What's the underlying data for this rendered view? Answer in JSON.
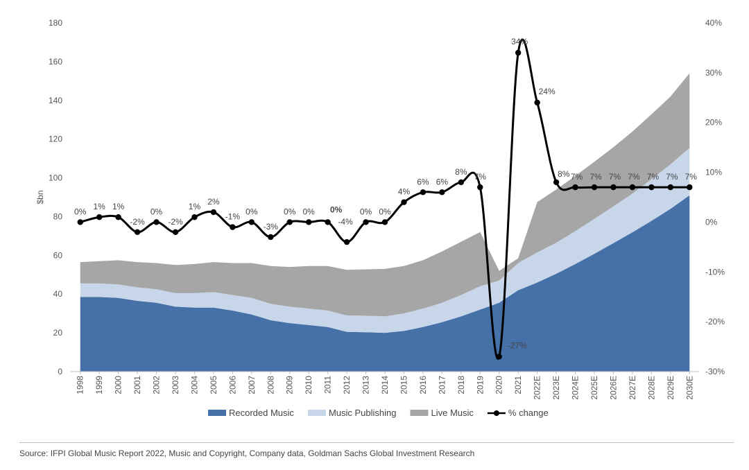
{
  "chart_data": {
    "type": "area",
    "stacked": true,
    "categories": [
      "1998",
      "1999",
      "2000",
      "2001",
      "2002",
      "2003",
      "2004",
      "2005",
      "2006",
      "2007",
      "2008",
      "2009",
      "2010",
      "2011",
      "2012",
      "2013",
      "2014",
      "2015",
      "2016",
      "2017",
      "2018",
      "2019",
      "2020",
      "2021",
      "2022E",
      "2023E",
      "2024E",
      "2025E",
      "2026E",
      "2027E",
      "2028E",
      "2029E",
      "2030E"
    ],
    "ylabel": "$bn",
    "ylim": [
      0,
      180
    ],
    "yticks": [
      0,
      20,
      40,
      60,
      80,
      100,
      120,
      140,
      160,
      180
    ],
    "y2lim": [
      -30,
      40
    ],
    "y2ticks": [
      "-30%",
      "-20%",
      "-10%",
      "0%",
      "10%",
      "20%",
      "30%",
      "40%"
    ],
    "y2tick_values": [
      -30,
      -20,
      -10,
      0,
      10,
      20,
      30,
      40
    ],
    "series": [
      {
        "name": "Recorded Music",
        "color": "#4571a8",
        "values": [
          38.5,
          38.5,
          38,
          36.5,
          35.5,
          33.5,
          33,
          33,
          31.5,
          29.5,
          26.5,
          25,
          24,
          23,
          20.5,
          20.3,
          20,
          21,
          23,
          25.5,
          28.5,
          32,
          35.5,
          42,
          46,
          50.5,
          55.5,
          60.8,
          66.3,
          71.9,
          77.8,
          84,
          91
        ]
      },
      {
        "name": "Music  Publishing",
        "color": "#c8d6e9",
        "values": [
          7,
          7,
          7,
          7,
          7,
          7,
          7.5,
          8,
          8,
          8.5,
          8.5,
          8.5,
          8.5,
          8.5,
          8.5,
          8.5,
          8.5,
          9,
          9.5,
          10,
          11,
          12,
          11.5,
          14,
          15.5,
          16,
          17,
          18,
          19,
          20,
          21.5,
          23,
          24.5
        ]
      },
      {
        "name": "Live Music",
        "color": "#a6a6a6",
        "values": [
          11,
          11.5,
          12.5,
          13,
          13.5,
          14.5,
          15,
          15.5,
          16.5,
          18,
          19.5,
          20.5,
          22,
          23,
          23.5,
          24,
          24.5,
          24.5,
          25,
          26.5,
          27.5,
          28,
          5,
          2.5,
          26,
          27.5,
          28.5,
          29.5,
          30.5,
          32,
          33.5,
          35,
          38.5
        ]
      }
    ],
    "pct_change": {
      "name": "% change",
      "color": "#000000",
      "values": [
        0,
        1,
        1,
        -2,
        0,
        -2,
        1,
        2,
        -1,
        0,
        -3,
        0,
        0,
        0,
        -4,
        0,
        0,
        4,
        6,
        6,
        8,
        7,
        -27,
        34,
        24,
        8,
        7,
        7,
        7,
        7,
        7,
        7,
        7
      ],
      "labels": [
        "0%",
        "1%",
        "1%",
        "-2%",
        "0%",
        "-2%",
        "1%",
        "2%",
        "-1%",
        "0%",
        "-3%",
        "0%",
        "0%",
        "0%",
        "-4%",
        "0%",
        "0%",
        "4%",
        "6%",
        "6%",
        "8%",
        "7%",
        "-27%",
        "34%",
        "24%",
        "8%",
        "7%",
        "7%",
        "7%",
        "7%",
        "7%",
        "7%",
        "7%"
      ]
    }
  },
  "source": "Source: IFPI Global Music Report 2022, Music and Copyright, Company data, Goldman Sachs Global Investment Research"
}
